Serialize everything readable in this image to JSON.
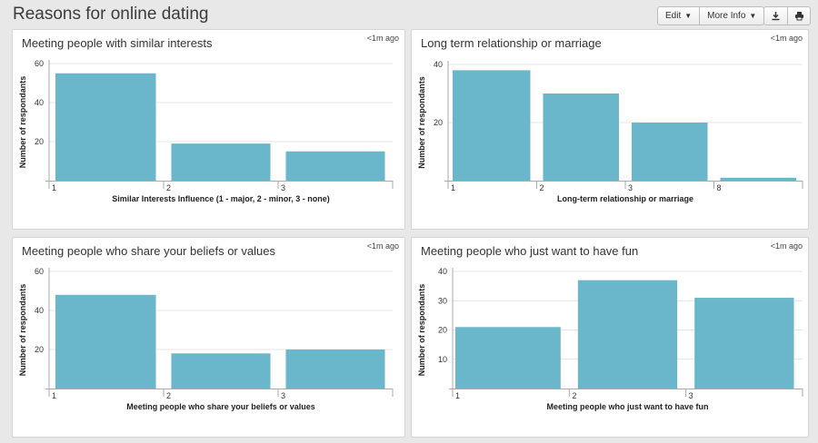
{
  "header": {
    "title": "Reasons for online dating",
    "edit_label": "Edit",
    "more_info_label": "More Info"
  },
  "panels": [
    {
      "title": "Meeting people with similar interests",
      "time": "<1m ago"
    },
    {
      "title": "Long term relationship or marriage",
      "time": "<1m ago"
    },
    {
      "title": "Meeting people who share your beliefs or values",
      "time": "<1m ago"
    },
    {
      "title": "Meeting people who just want to have fun",
      "time": "<1m ago"
    }
  ],
  "colors": {
    "bar": "#6ab6cb",
    "grid": "#e4e4e4",
    "axis": "#aaaaaa"
  },
  "chart_data": [
    {
      "type": "bar",
      "title": "Meeting people with similar interests",
      "categories": [
        "1",
        "2",
        "3"
      ],
      "values": [
        55,
        19,
        15
      ],
      "xlabel": "Similar Interests Influence (1 - major, 2 - minor, 3 - none)",
      "ylabel": "Number of respondants",
      "ylim": [
        0,
        60
      ],
      "yticks": [
        20,
        40,
        60
      ],
      "grid": true
    },
    {
      "type": "bar",
      "title": "Long term relationship or marriage",
      "categories": [
        "1",
        "2",
        "3",
        "8"
      ],
      "values": [
        38,
        30,
        20,
        1
      ],
      "xlabel": "Long-term relationship or marriage",
      "ylabel": "Number of respondants",
      "ylim": [
        0,
        40
      ],
      "yticks": [
        20,
        40
      ],
      "grid": true
    },
    {
      "type": "bar",
      "title": "Meeting people who share your beliefs or values",
      "categories": [
        "1",
        "2",
        "3"
      ],
      "values": [
        48,
        18,
        20
      ],
      "xlabel": "Meeting people who share your beliefs or values",
      "ylabel": "Number of respondants",
      "ylim": [
        0,
        60
      ],
      "yticks": [
        20,
        40,
        60
      ],
      "grid": true
    },
    {
      "type": "bar",
      "title": "Meeting people who just want to have fun",
      "categories": [
        "1",
        "2",
        "3"
      ],
      "values": [
        21,
        37,
        31
      ],
      "xlabel": "Meeting people who just want to have fun",
      "ylabel": "Number of respondants",
      "ylim": [
        0,
        40
      ],
      "yticks": [
        10,
        20,
        30,
        40
      ],
      "grid": true
    }
  ]
}
